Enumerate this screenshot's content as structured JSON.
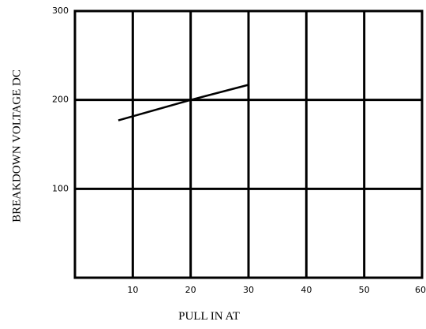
{
  "chart_data": {
    "type": "line",
    "x_label": "PULL IN AT",
    "y_label": "BREAKDOWN VOLTAGE DC",
    "x": [
      7.5,
      20,
      30
    ],
    "series": [
      {
        "color": "#000000",
        "values": [
          177,
          200,
          217
        ]
      }
    ],
    "xlim": [
      0,
      60
    ],
    "xticks": [
      10,
      20,
      30,
      40,
      50,
      60
    ],
    "ylim": [
      0,
      300
    ],
    "yticks": [
      100,
      200,
      300
    ],
    "grid": true
  }
}
